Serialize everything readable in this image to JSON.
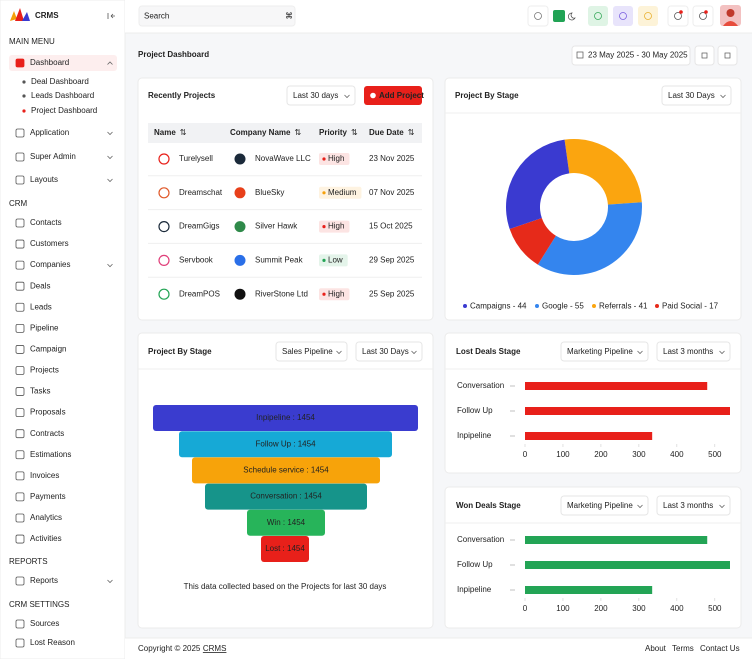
{
  "brand": "CRMS",
  "search_placeholder": "Search",
  "sidebar": {
    "sections": [
      {
        "heading": "MAIN MENU",
        "items": [
          {
            "label": "Dashboard",
            "children": [
              "Deal Dashboard",
              "Leads Dashboard",
              "Project Dashboard"
            ]
          },
          {
            "label": "Application"
          },
          {
            "label": "Super Admin"
          },
          {
            "label": "Layouts"
          }
        ]
      },
      {
        "heading": "CRM",
        "items": [
          {
            "label": "Contacts"
          },
          {
            "label": "Customers"
          },
          {
            "label": "Companies"
          },
          {
            "label": "Deals"
          },
          {
            "label": "Leads"
          },
          {
            "label": "Pipeline"
          },
          {
            "label": "Campaign"
          },
          {
            "label": "Projects"
          },
          {
            "label": "Tasks"
          },
          {
            "label": "Proposals"
          },
          {
            "label": "Contracts"
          },
          {
            "label": "Estimations"
          },
          {
            "label": "Invoices"
          },
          {
            "label": "Payments"
          },
          {
            "label": "Analytics"
          },
          {
            "label": "Activities"
          }
        ]
      },
      {
        "heading": "REPORTS",
        "items": [
          {
            "label": "Reports"
          }
        ]
      },
      {
        "heading": "CRM SETTINGS",
        "items": [
          {
            "label": "Sources"
          },
          {
            "label": "Lost Reason"
          }
        ]
      }
    ]
  },
  "page_title": "Project Dashboard",
  "date_range": "23 May 2025 - 30 May 2025",
  "recent_projects": {
    "title": "Recently  Projects",
    "filter": "Last 30 days",
    "button": "Add Project",
    "columns": [
      "Name",
      "Company Name",
      "Priority",
      "Due Date"
    ],
    "rows": [
      {
        "name": "Turelysell",
        "company": "NovaWave LLC",
        "priority": "High",
        "priority_color": "#e8201a",
        "due": "23 Nov 2025"
      },
      {
        "name": "Dreamschat",
        "company": "BlueSky",
        "priority": "Medium",
        "priority_color": "#f5a00a",
        "due": "07 Nov 2025"
      },
      {
        "name": "DreamGigs",
        "company": "Silver Hawk",
        "priority": "High",
        "priority_color": "#e8201a",
        "due": "15 Oct 2025"
      },
      {
        "name": "Servbook",
        "company": "Summit  Peak",
        "priority": "Low",
        "priority_color": "#23a455",
        "due": "29 Sep 2025"
      },
      {
        "name": "DreamPOS",
        "company": "RiverStone Ltd",
        "priority": "High",
        "priority_color": "#e8201a",
        "due": "25 Sep 2025"
      }
    ]
  },
  "chart_data": [
    {
      "type": "pie",
      "donut": true,
      "title": "Project By Stage",
      "filter": "Last 30 Days",
      "categories": [
        "Campaigns - 44",
        "Google - 55",
        "Referrals - 41",
        "Paid Social - 17"
      ],
      "values": [
        44,
        55,
        41,
        17
      ],
      "colors": [
        "#3a3ad0",
        "#3485ee",
        "#fba50f",
        "#e62a1a"
      ]
    },
    {
      "type": "funnel",
      "title": "Project By Stage",
      "filters": [
        "Sales Pipeline",
        "Last 30 Days"
      ],
      "values": [
        1454,
        1454,
        1454,
        1454,
        1454,
        1454
      ],
      "value_labels": [
        "Inpipeline : 1454",
        "Follow Up : 1454",
        "Schedule service : 1454",
        "Conversation : 1454",
        "Win : 1454",
        "Lost : 1454"
      ],
      "colors": [
        "#3a3ccf",
        "#16a9d6",
        "#f7a30a",
        "#16948a",
        "#27b45a",
        "#e8201a"
      ],
      "note": "This data collected based on the Projects for last 30 days"
    },
    {
      "type": "hbar",
      "title": "Lost Deals Stage",
      "filters": [
        "Marketing Pipeline",
        "Last 3 months"
      ],
      "categories": [
        "Conversation",
        "Follow Up",
        "Inpipeline"
      ],
      "values": [
        480,
        540,
        335
      ],
      "color": "#e8201a",
      "xlim": [
        0,
        540
      ],
      "xticks": [
        0,
        100,
        200,
        300,
        400,
        500
      ]
    },
    {
      "type": "hbar",
      "title": "Won Deals Stage",
      "filters": [
        "Marketing Pipeline",
        "Last 3 months"
      ],
      "categories": [
        "Conversation",
        "Follow Up",
        "Inpipeline"
      ],
      "values": [
        480,
        540,
        335
      ],
      "color": "#23a455",
      "xlim": [
        0,
        540
      ],
      "xticks": [
        0,
        100,
        200,
        300,
        400,
        500
      ]
    }
  ],
  "footer": {
    "copyright": "Copyright © 2025",
    "brand": "CRMS",
    "links": [
      "About",
      "Terms",
      "Contact Us"
    ]
  }
}
